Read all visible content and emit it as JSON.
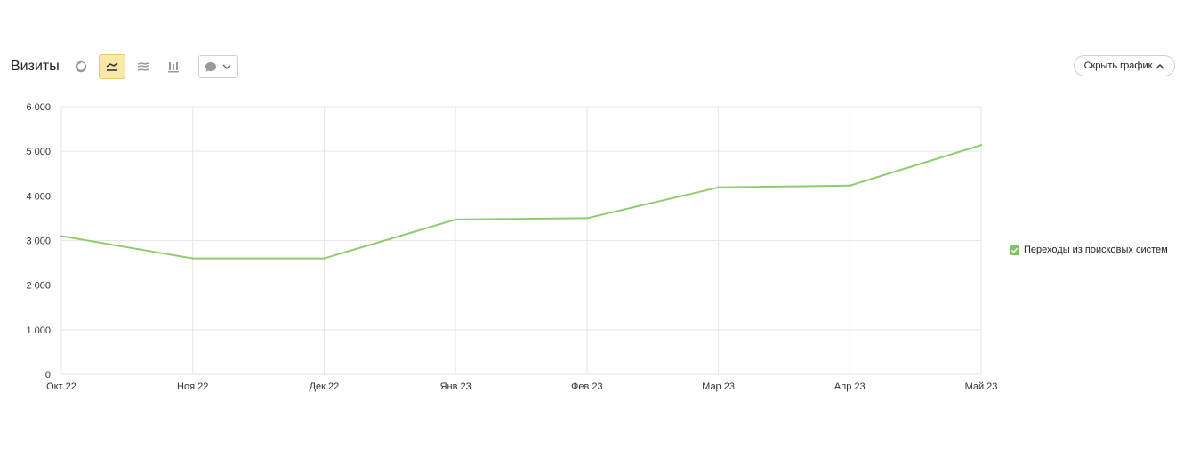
{
  "header": {
    "title": "Визиты",
    "hide_chart_label": "Скрыть график"
  },
  "toolbar": {
    "buttons": [
      {
        "icon": "pie-chart-icon",
        "active": false
      },
      {
        "icon": "line-chart-icon",
        "active": true
      },
      {
        "icon": "stacked-area-icon",
        "active": false
      },
      {
        "icon": "bar-chart-icon",
        "active": false
      }
    ],
    "comment_icon": "comment-icon",
    "dropdown_icon": "chevron-down-icon"
  },
  "colors": {
    "series": "#8fcc6e",
    "grid": "#e6e6e6",
    "active_button": "#fbe8a6",
    "legend_check": "#7cc561"
  },
  "chart_data": {
    "type": "line",
    "categories": [
      "Окт 22",
      "Ноя 22",
      "Дек 22",
      "Янв 23",
      "Фев 23",
      "Мар 23",
      "Апр 23",
      "Май 23"
    ],
    "series": [
      {
        "name": "Переходы из поисковых систем",
        "values": [
          3100,
          2600,
          2600,
          3470,
          3500,
          4190,
          4230,
          5140
        ]
      }
    ],
    "yticks": [
      "0",
      "1 000",
      "2 000",
      "3 000",
      "4 000",
      "5 000",
      "6 000"
    ],
    "ylim": [
      0,
      6000
    ],
    "grid": true,
    "legend_position": "right"
  }
}
